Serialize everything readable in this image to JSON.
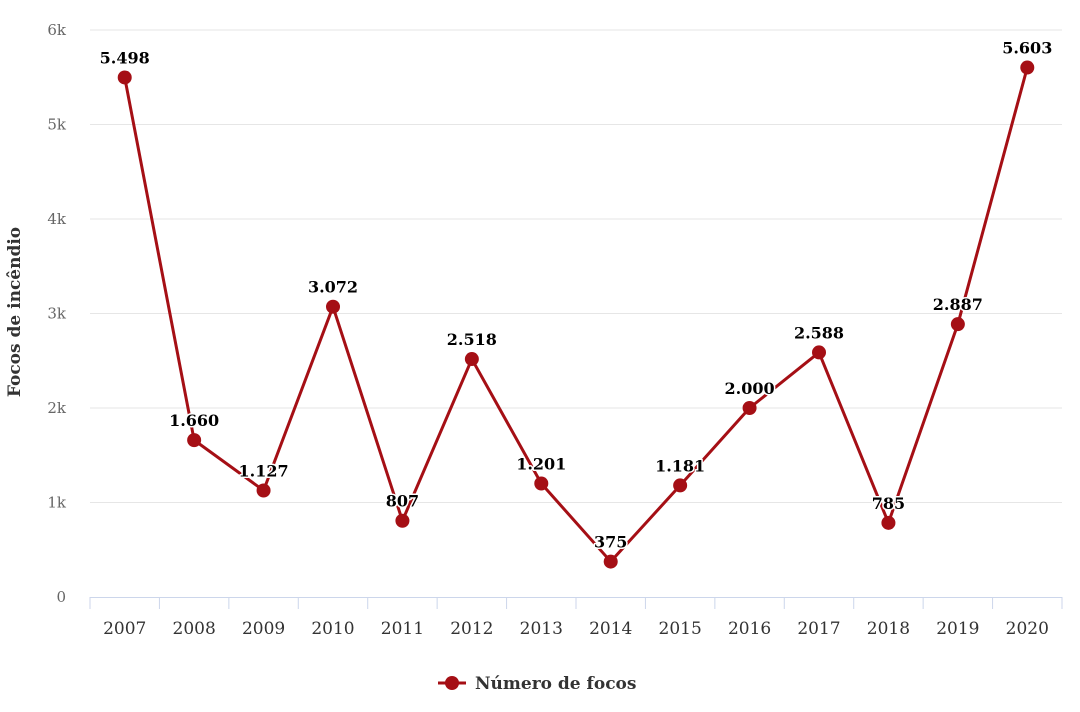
{
  "chart_data": {
    "type": "line",
    "title": "",
    "xlabel": "",
    "ylabel": "Focos de incêndio",
    "ylim": [
      0,
      6000
    ],
    "y_ticks": [
      {
        "value": 0,
        "label": "0"
      },
      {
        "value": 1000,
        "label": "1k"
      },
      {
        "value": 2000,
        "label": "2k"
      },
      {
        "value": 3000,
        "label": "3k"
      },
      {
        "value": 4000,
        "label": "4k"
      },
      {
        "value": 5000,
        "label": "5k"
      },
      {
        "value": 6000,
        "label": "6k"
      }
    ],
    "grid": true,
    "legend_position": "bottom-center",
    "categories": [
      "2007",
      "2008",
      "2009",
      "2010",
      "2011",
      "2012",
      "2013",
      "2014",
      "2015",
      "2016",
      "2017",
      "2018",
      "2019",
      "2020"
    ],
    "series": [
      {
        "name": "Número de focos",
        "color": "#a50f15",
        "values": [
          5498,
          1660,
          1127,
          3072,
          807,
          2518,
          1201,
          375,
          1181,
          2000,
          2588,
          785,
          2887,
          5603
        ],
        "labels": [
          "5.498",
          "1.660",
          "1.127",
          "3.072",
          "807",
          "2.518",
          "1.201",
          "375",
          "1.181",
          "2.000",
          "2.588",
          "785",
          "2.887",
          "5.603"
        ]
      }
    ]
  }
}
